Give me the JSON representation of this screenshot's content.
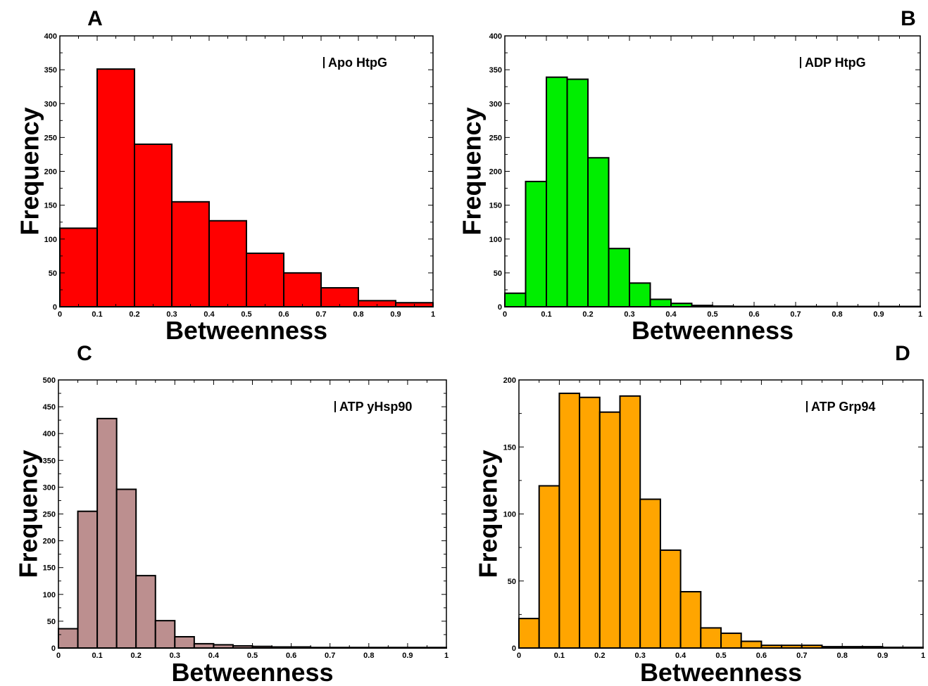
{
  "chart_data": [
    {
      "type": "bar",
      "panel_label": "A",
      "legend": "Apo HtpG",
      "xlabel": "Betweenness",
      "ylabel": "Frequency",
      "xlim": [
        0,
        1
      ],
      "ylim": [
        0,
        400
      ],
      "yticks": [
        0,
        50,
        100,
        150,
        200,
        250,
        300,
        350,
        400
      ],
      "xticks": [
        0,
        0.1,
        0.2,
        0.3,
        0.4,
        0.5,
        0.6,
        0.7,
        0.8,
        0.9,
        1
      ],
      "xtick_labels": [
        "0",
        "0.1",
        "0.2",
        "0.3",
        "0.4",
        "0.5",
        "0.6",
        "0.7",
        "0.8",
        "0.9",
        "1"
      ],
      "bin_width": 0.1,
      "bins": [
        0,
        0.1,
        0.2,
        0.3,
        0.4,
        0.5,
        0.6,
        0.7,
        0.8,
        0.9
      ],
      "values": [
        116,
        351,
        240,
        155,
        127,
        79,
        50,
        28,
        9,
        6
      ],
      "color": "#ff0000"
    },
    {
      "type": "bar",
      "panel_label": "B",
      "legend": "ADP HtpG",
      "xlabel": "Betweenness",
      "ylabel": "Frequency",
      "xlim": [
        0,
        1
      ],
      "ylim": [
        0,
        400
      ],
      "yticks": [
        0,
        50,
        100,
        150,
        200,
        250,
        300,
        350,
        400
      ],
      "xticks": [
        0,
        0.1,
        0.2,
        0.3,
        0.4,
        0.5,
        0.6,
        0.7,
        0.8,
        0.9,
        1
      ],
      "xtick_labels": [
        "0",
        "0.1",
        "0.2",
        "0.3",
        "0.4",
        "0.5",
        "0.6",
        "0.7",
        "0.8",
        "0.9",
        "1"
      ],
      "bin_width": 0.05,
      "bins": [
        0,
        0.05,
        0.1,
        0.15,
        0.2,
        0.25,
        0.3,
        0.35,
        0.4,
        0.45,
        0.5,
        0.55,
        0.6,
        0.65,
        0.7,
        0.75,
        0.8,
        0.85,
        0.9,
        0.95
      ],
      "values": [
        20,
        185,
        339,
        336,
        220,
        86,
        35,
        11,
        5,
        2,
        1,
        0.5,
        0.5,
        0.5,
        0.5,
        0.5,
        0.5,
        0.5,
        0.5,
        0.5
      ],
      "color": "#00ee00"
    },
    {
      "type": "bar",
      "panel_label": "C",
      "legend": "ATP yHsp90",
      "xlabel": "Betweenness",
      "ylabel": "Frequency",
      "xlim": [
        0,
        1
      ],
      "ylim": [
        0,
        500
      ],
      "yticks": [
        0,
        50,
        100,
        150,
        200,
        250,
        300,
        350,
        400,
        450,
        500
      ],
      "xticks": [
        0,
        0.1,
        0.2,
        0.3,
        0.4,
        0.5,
        0.6,
        0.7,
        0.8,
        0.9,
        1
      ],
      "xtick_labels": [
        "0",
        "0.1",
        "0.2",
        "0.3",
        "0.4",
        "0.5",
        "0.6",
        "0.7",
        "0.8",
        "0.9",
        "1"
      ],
      "bin_width": 0.05,
      "bins": [
        0,
        0.05,
        0.1,
        0.15,
        0.2,
        0.25,
        0.3,
        0.35,
        0.4,
        0.45,
        0.5,
        0.55,
        0.6,
        0.65,
        0.7,
        0.75,
        0.8,
        0.85,
        0.9,
        0.95
      ],
      "values": [
        36,
        255,
        428,
        296,
        135,
        51,
        21,
        8,
        6,
        4,
        3,
        2,
        2,
        1,
        1,
        1,
        1,
        1,
        1,
        1
      ],
      "color": "#bc8f8f"
    },
    {
      "type": "bar",
      "panel_label": "D",
      "legend": "ATP Grp94",
      "xlabel": "Betweenness",
      "ylabel": "Frequency",
      "xlim": [
        0,
        1
      ],
      "ylim": [
        0,
        200
      ],
      "yticks": [
        0,
        50,
        100,
        150,
        200
      ],
      "xticks": [
        0,
        0.1,
        0.2,
        0.3,
        0.4,
        0.5,
        0.6,
        0.7,
        0.8,
        0.9,
        1
      ],
      "xtick_labels": [
        "0",
        "0.1",
        "0.2",
        "0.3",
        "0.4",
        "0.5",
        "0.6",
        "0.7",
        "0.8",
        "0.9",
        "1"
      ],
      "bin_width": 0.05,
      "bins": [
        0,
        0.05,
        0.1,
        0.15,
        0.2,
        0.25,
        0.3,
        0.35,
        0.4,
        0.45,
        0.5,
        0.55,
        0.6,
        0.65,
        0.7,
        0.75,
        0.8,
        0.85,
        0.9,
        0.95
      ],
      "values": [
        22,
        121,
        190,
        187,
        176,
        188,
        111,
        73,
        42,
        15,
        11,
        5,
        2,
        2,
        2,
        1,
        1,
        1,
        0.5,
        0.5
      ],
      "color": "#ffa500"
    }
  ]
}
